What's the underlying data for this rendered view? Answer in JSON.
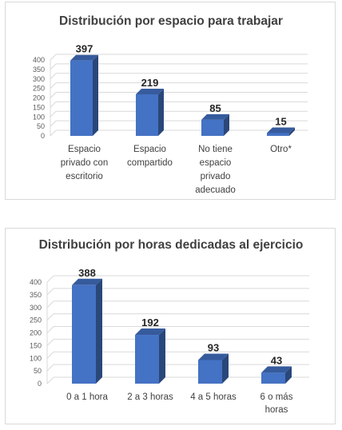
{
  "chart_data": [
    {
      "type": "bar",
      "title": "Distribución por espacio para trabajar",
      "categories": [
        [
          "Espacio",
          "privado con",
          "escritorio"
        ],
        [
          "Espacio",
          "compartido"
        ],
        [
          "No tiene",
          "espacio",
          "privado",
          "adecuado"
        ],
        [
          "Otro*"
        ]
      ],
      "values": [
        397,
        219,
        85,
        15
      ],
      "yticks": [
        0,
        50,
        100,
        150,
        200,
        250,
        300,
        350,
        400
      ],
      "ylim": [
        0,
        400
      ],
      "grid": true,
      "bar_color": "#4472C4"
    },
    {
      "type": "bar",
      "title": "Distribución por horas dedicadas al ejercicio",
      "categories": [
        [
          "0 a 1 hora"
        ],
        [
          "2 a 3 horas"
        ],
        [
          "4 a 5 horas"
        ],
        [
          "6 o más",
          "horas"
        ]
      ],
      "values": [
        388,
        192,
        93,
        43
      ],
      "yticks": [
        0,
        50,
        100,
        150,
        200,
        250,
        300,
        350,
        400
      ],
      "ylim": [
        0,
        400
      ],
      "grid": true,
      "bar_color": "#4472C4"
    }
  ]
}
